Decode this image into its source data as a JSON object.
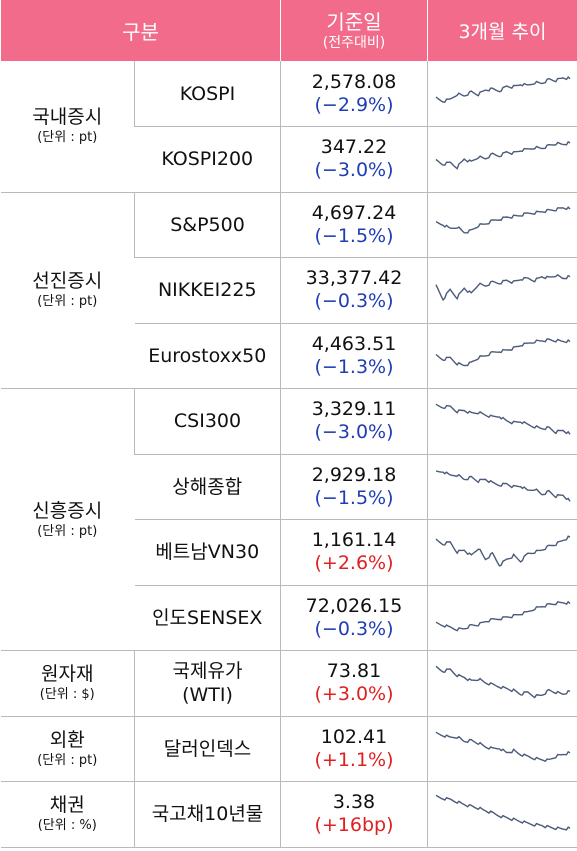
{
  "header": {
    "group": "구분",
    "date_main": "기준일",
    "date_sub": "(전주대비)",
    "trend": "3개월 추이"
  },
  "colors": {
    "header_bg": "#f26b8a",
    "negative": "#1f3db5",
    "positive": "#e02020",
    "line": "#4a5a78"
  },
  "groups": [
    {
      "name": "국내증시",
      "unit": "(단위 : pt)",
      "rows": [
        {
          "name": "KOSPI",
          "value": "2,578.08",
          "change": "(−2.9%)",
          "dir": "neg",
          "trend": [
            0.62,
            0.7,
            0.65,
            0.5,
            0.55,
            0.45,
            0.52,
            0.4,
            0.38,
            0.42,
            0.3,
            0.32,
            0.25,
            0.28,
            0.2,
            0.22,
            0.12,
            0.15,
            0.08,
            0.1
          ]
        },
        {
          "name": "KOSPI200",
          "value": "347.22",
          "change": "(−3.0%)",
          "dir": "neg",
          "trend": [
            0.55,
            0.65,
            0.6,
            0.72,
            0.5,
            0.58,
            0.45,
            0.5,
            0.38,
            0.42,
            0.32,
            0.35,
            0.28,
            0.25,
            0.2,
            0.22,
            0.15,
            0.1,
            0.12,
            0.08
          ]
        }
      ]
    },
    {
      "name": "선진증시",
      "unit": "(단위 : pt)",
      "rows": [
        {
          "name": "S&P500",
          "value": "4,697.24",
          "change": "(−1.5%)",
          "dir": "neg",
          "trend": [
            0.45,
            0.5,
            0.6,
            0.55,
            0.7,
            0.65,
            0.52,
            0.48,
            0.4,
            0.35,
            0.3,
            0.28,
            0.25,
            0.2,
            0.18,
            0.15,
            0.12,
            0.1,
            0.05,
            0.08
          ]
        },
        {
          "name": "NIKKEI225",
          "value": "33,377.42",
          "change": "(−0.3%)",
          "dir": "neg",
          "trend": [
            0.4,
            0.75,
            0.5,
            0.7,
            0.45,
            0.6,
            0.35,
            0.4,
            0.3,
            0.32,
            0.25,
            0.3,
            0.22,
            0.2,
            0.25,
            0.15,
            0.18,
            0.12,
            0.2,
            0.15
          ]
        },
        {
          "name": "Eurostoxx50",
          "value": "4,463.51",
          "change": "(−1.3%)",
          "dir": "neg",
          "trend": [
            0.5,
            0.6,
            0.55,
            0.7,
            0.75,
            0.68,
            0.55,
            0.5,
            0.42,
            0.38,
            0.35,
            0.3,
            0.22,
            0.18,
            0.12,
            0.1,
            0.08,
            0.1,
            0.12,
            0.12
          ]
        }
      ]
    },
    {
      "name": "신흥증시",
      "unit": "(단위 : pt)",
      "rows": [
        {
          "name": "CSI300",
          "value": "3,329.11",
          "change": "(−3.0%)",
          "dir": "neg",
          "trend": [
            0.1,
            0.15,
            0.12,
            0.25,
            0.22,
            0.3,
            0.28,
            0.35,
            0.4,
            0.38,
            0.5,
            0.55,
            0.52,
            0.6,
            0.65,
            0.7,
            0.68,
            0.8,
            0.75,
            0.85
          ]
        },
        {
          "name": "상해종합",
          "value": "2,929.18",
          "change": "(−1.5%)",
          "dir": "neg",
          "trend": [
            0.12,
            0.1,
            0.2,
            0.18,
            0.3,
            0.25,
            0.35,
            0.3,
            0.4,
            0.45,
            0.42,
            0.5,
            0.48,
            0.6,
            0.55,
            0.7,
            0.62,
            0.75,
            0.72,
            0.88
          ]
        },
        {
          "name": "베트남VN30",
          "value": "1,161.14",
          "change": "(+2.6%)",
          "dir": "pos",
          "trend": [
            0.2,
            0.3,
            0.25,
            0.5,
            0.45,
            0.6,
            0.4,
            0.7,
            0.55,
            0.85,
            0.7,
            0.6,
            0.75,
            0.55,
            0.5,
            0.45,
            0.35,
            0.3,
            0.2,
            0.1
          ]
        },
        {
          "name": "인도SENSEX",
          "value": "72,026.15",
          "change": "(−0.3%)",
          "dir": "neg",
          "trend": [
            0.65,
            0.7,
            0.75,
            0.8,
            0.78,
            0.7,
            0.68,
            0.6,
            0.55,
            0.52,
            0.48,
            0.45,
            0.4,
            0.35,
            0.25,
            0.2,
            0.15,
            0.12,
            0.1,
            0.12
          ]
        }
      ]
    },
    {
      "name": "원자재",
      "unit": "(단위 : $)",
      "rows": [
        {
          "name": "국제유가\n(WTI)",
          "value": "73.81",
          "change": "(+3.0%)",
          "dir": "pos",
          "trend": [
            0.1,
            0.2,
            0.15,
            0.3,
            0.35,
            0.45,
            0.4,
            0.5,
            0.55,
            0.6,
            0.65,
            0.7,
            0.8,
            0.75,
            0.85,
            0.82,
            0.7,
            0.75,
            0.8,
            0.72
          ]
        }
      ]
    },
    {
      "name": "외환",
      "unit": "(단위 : pt)",
      "rows": [
        {
          "name": "달러인덱스",
          "value": "102.41",
          "change": "(+1.1%)",
          "dir": "pos",
          "trend": [
            0.1,
            0.15,
            0.2,
            0.18,
            0.3,
            0.28,
            0.35,
            0.45,
            0.5,
            0.48,
            0.6,
            0.55,
            0.65,
            0.7,
            0.75,
            0.78,
            0.8,
            0.7,
            0.65,
            0.6
          ]
        }
      ]
    },
    {
      "name": "채권",
      "unit": "(단위 : %)",
      "rows": [
        {
          "name": "국고채10년물",
          "value": "3.38",
          "change": "(+16bp)",
          "dir": "pos",
          "trend": [
            0.05,
            0.1,
            0.12,
            0.18,
            0.25,
            0.3,
            0.35,
            0.42,
            0.48,
            0.55,
            0.6,
            0.65,
            0.7,
            0.75,
            0.78,
            0.8,
            0.85,
            0.88,
            0.9,
            0.88
          ]
        }
      ]
    }
  ]
}
